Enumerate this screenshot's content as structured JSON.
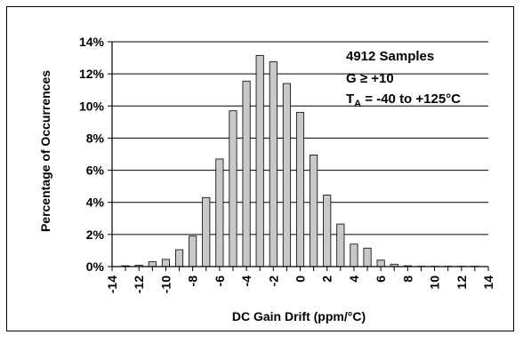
{
  "chart_data": {
    "type": "bar",
    "title": "",
    "xlabel": "DC Gain Drift (ppm/°C)",
    "ylabel": "Percentage of Occurrences",
    "x": [
      -13,
      -12,
      -11,
      -10,
      -9,
      -8,
      -7,
      -6,
      -5,
      -4,
      -3,
      -2,
      -1,
      0,
      1,
      2,
      3,
      4,
      5,
      6,
      7,
      8,
      9,
      10,
      11,
      12,
      13
    ],
    "values": [
      0.05,
      0.08,
      0.3,
      0.45,
      1.05,
      1.9,
      4.3,
      6.7,
      9.7,
      11.55,
      13.15,
      12.75,
      11.4,
      9.6,
      6.95,
      4.45,
      2.65,
      1.4,
      1.15,
      0.4,
      0.15,
      0.05,
      0.02,
      0.02,
      0.02,
      0.02,
      0.02
    ],
    "xlim": [
      -14,
      14
    ],
    "ylim": [
      0,
      14
    ],
    "xticks": [
      -14,
      -12,
      -10,
      -8,
      -6,
      -4,
      -2,
      0,
      2,
      4,
      6,
      8,
      10,
      12,
      14
    ],
    "yticks": [
      "0%",
      "2%",
      "4%",
      "6%",
      "8%",
      "10%",
      "12%",
      "14%"
    ],
    "grid": true,
    "bar_color": "#c8c8c8",
    "annotations": {
      "line1": "4912 Samples",
      "line2": "G ≥ +10",
      "line3_pre": "T",
      "line3_sub": "A",
      "line3_post": " = -40 to +125°C"
    }
  }
}
